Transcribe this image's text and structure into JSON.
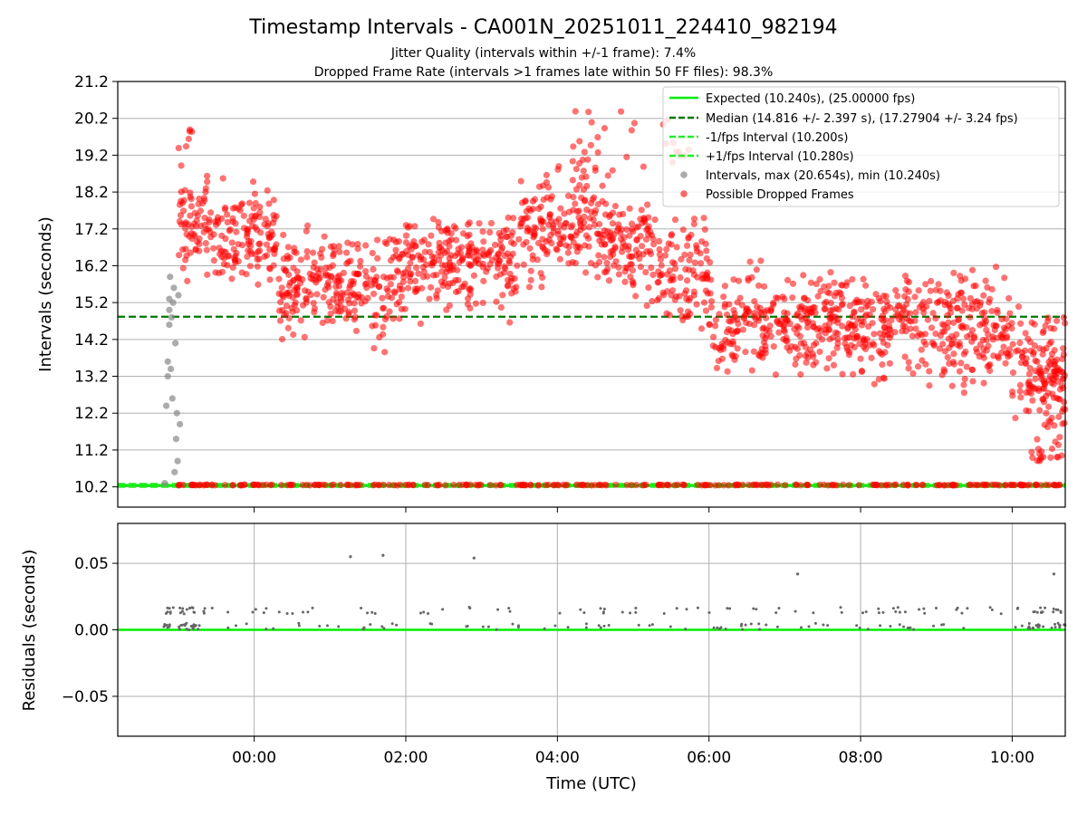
{
  "title": "Timestamp Intervals - CA001N_20251011_224410_982194",
  "subtitle_lines": [
    "Jitter Quality (intervals within +/-1 frame): 7.4%",
    "Dropped Frame Rate (intervals >1 frames late within 50 FF files): 98.3%"
  ],
  "colors": {
    "expected": "#00ee00",
    "median": "#007700",
    "fps_interval": "#22ee22",
    "intervals": "#888888",
    "dropped": "#ff0000",
    "residuals": "#666666",
    "grid": "#b0b0b0"
  },
  "chart_data": [
    {
      "type": "scatter",
      "panel": "top",
      "ylabel": "Intervals (seconds)",
      "ylim": [
        9.65,
        21.2
      ],
      "xlim_hours": [
        -1.8,
        10.7
      ],
      "yticks": [
        "10.2",
        "11.2",
        "12.2",
        "13.2",
        "14.2",
        "15.2",
        "16.2",
        "17.2",
        "18.2",
        "19.2",
        "20.2",
        "21.2"
      ],
      "lines": [
        {
          "name": "Expected (10.240s), (25.00000 fps)",
          "y": 10.24,
          "style": "solid",
          "color_key": "expected"
        },
        {
          "name": "Median (14.816 +/- 2.397 s), (17.27904 +/- 3.24 fps)",
          "y": 14.816,
          "style": "dashed",
          "color_key": "median"
        },
        {
          "name": "-1/fps Interval (10.200s)",
          "y": 10.2,
          "style": "dashed",
          "color_key": "fps_interval"
        },
        {
          "name": "+1/fps Interval (10.280s)",
          "y": 10.28,
          "style": "dashed",
          "color_key": "fps_interval"
        }
      ],
      "series": [
        {
          "name": "Intervals, max (20.654s), min (10.240s)",
          "color_key": "intervals",
          "points": [
            [
              -1.18,
              10.3
            ],
            [
              -1.16,
              12.4
            ],
            [
              -1.14,
              13.2
            ],
            [
              -1.14,
              13.6
            ],
            [
              -1.12,
              14.6
            ],
            [
              -1.12,
              15.0
            ],
            [
              -1.12,
              15.3
            ],
            [
              -1.11,
              15.9
            ],
            [
              -1.1,
              13.4
            ],
            [
              -1.09,
              14.8
            ],
            [
              -1.08,
              12.6
            ],
            [
              -1.07,
              15.2
            ],
            [
              -1.06,
              15.6
            ],
            [
              -1.05,
              10.6
            ],
            [
              -1.04,
              14.1
            ],
            [
              -1.03,
              11.5
            ],
            [
              -1.02,
              12.2
            ],
            [
              -1.01,
              10.9
            ],
            [
              -1.0,
              15.4
            ],
            [
              -0.98,
              11.9
            ]
          ]
        },
        {
          "name": "Possible Dropped Frames",
          "color_key": "dropped",
          "generator": {
            "seed": 20251011,
            "count": 2100,
            "x_range_hours": [
              -1.0,
              10.7
            ],
            "y_range": [
              10.24,
              20.654
            ],
            "floor_fraction": 0.12
          }
        }
      ]
    },
    {
      "type": "scatter",
      "panel": "bottom",
      "xlabel": "Time (UTC)",
      "ylabel": "Residuals (seconds)",
      "ylim": [
        -0.08,
        0.08
      ],
      "yticks": [
        "0.05",
        "0.00",
        "−0.05"
      ],
      "xticks": [
        "00:00",
        "02:00",
        "04:00",
        "06:00",
        "08:00",
        "10:00"
      ],
      "lines": [
        {
          "name": "zero residual",
          "y": 0.0,
          "style": "solid",
          "color_key": "expected"
        }
      ],
      "series": [
        {
          "name": "Residuals",
          "color_key": "residuals",
          "points": [
            [
              1.27,
              0.055
            ],
            [
              1.7,
              0.056
            ],
            [
              2.9,
              0.054
            ],
            [
              7.17,
              0.042
            ],
            [
              10.55,
              0.042
            ]
          ],
          "generator": {
            "seed": 424242,
            "count": 240,
            "x_range_hours": [
              -1.2,
              10.7
            ],
            "y_values": [
              0.001,
              0.003,
              0.004,
              0.013,
              0.016
            ]
          }
        }
      ]
    }
  ],
  "legend": [
    {
      "label": "Expected (10.240s), (25.00000 fps)",
      "kind": "line",
      "color_key": "expected",
      "dash": false
    },
    {
      "label": "Median (14.816 +/- 2.397 s), (17.27904 +/- 3.24 fps)",
      "kind": "line",
      "color_key": "median",
      "dash": true
    },
    {
      "label": "-1/fps Interval (10.200s)",
      "kind": "line",
      "color_key": "fps_interval",
      "dash": true
    },
    {
      "label": "+1/fps Interval (10.280s)",
      "kind": "line",
      "color_key": "fps_interval",
      "dash": true
    },
    {
      "label": "Intervals, max (20.654s), min (10.240s)",
      "kind": "dot",
      "color_key": "intervals"
    },
    {
      "label": "Possible Dropped Frames",
      "kind": "dot",
      "color_key": "dropped"
    }
  ]
}
